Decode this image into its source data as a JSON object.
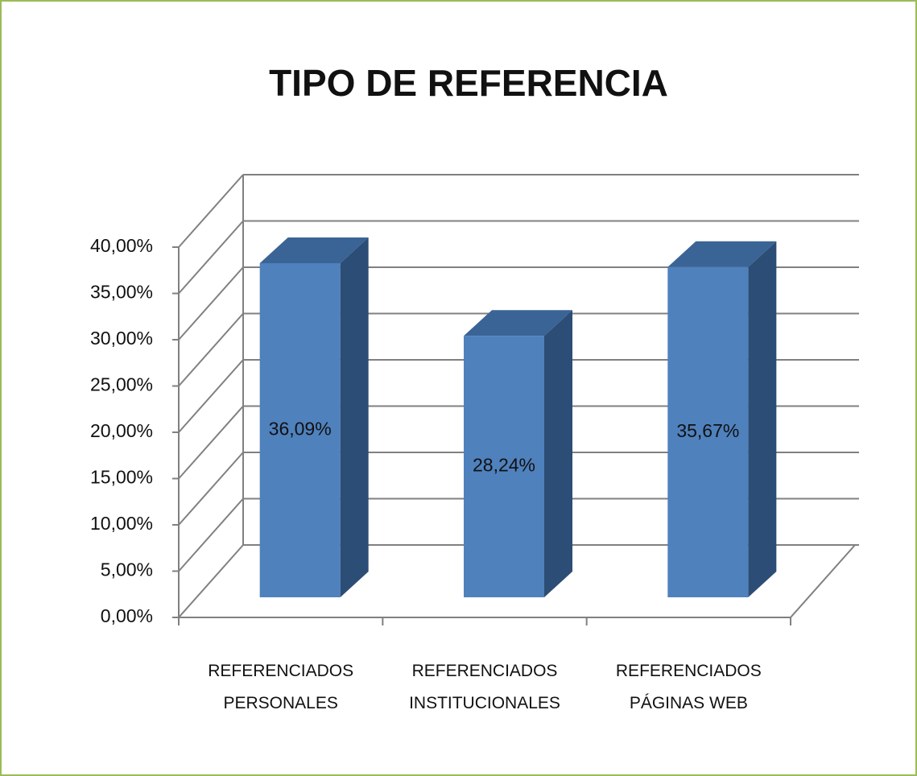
{
  "chart_data": {
    "type": "bar3d",
    "title": "TIPO DE REFERENCIA",
    "categories": [
      "REFERENCIADOS PERSONALES",
      "REFERENCIADOS INSTITUCIONALES",
      "REFERENCIADOS PÁGINAS WEB"
    ],
    "values": [
      36.09,
      28.24,
      35.67
    ],
    "value_labels": [
      "36,09%",
      "28,24%",
      "35,67%"
    ],
    "colors": {
      "front": "#4f81bd",
      "side": "#2c4d75",
      "top": "#3b6496"
    },
    "ylim": [
      0,
      40
    ],
    "yticks": [
      {
        "value": 0,
        "label": "0,00%"
      },
      {
        "value": 5,
        "label": "5,00%"
      },
      {
        "value": 10,
        "label": "10,00%"
      },
      {
        "value": 15,
        "label": "15,00%"
      },
      {
        "value": 20,
        "label": "20,00%"
      },
      {
        "value": 25,
        "label": "25,00%"
      },
      {
        "value": 30,
        "label": "30,00%"
      },
      {
        "value": 35,
        "label": "35,00%"
      },
      {
        "value": 40,
        "label": "40,00%"
      }
    ],
    "grid": true
  }
}
